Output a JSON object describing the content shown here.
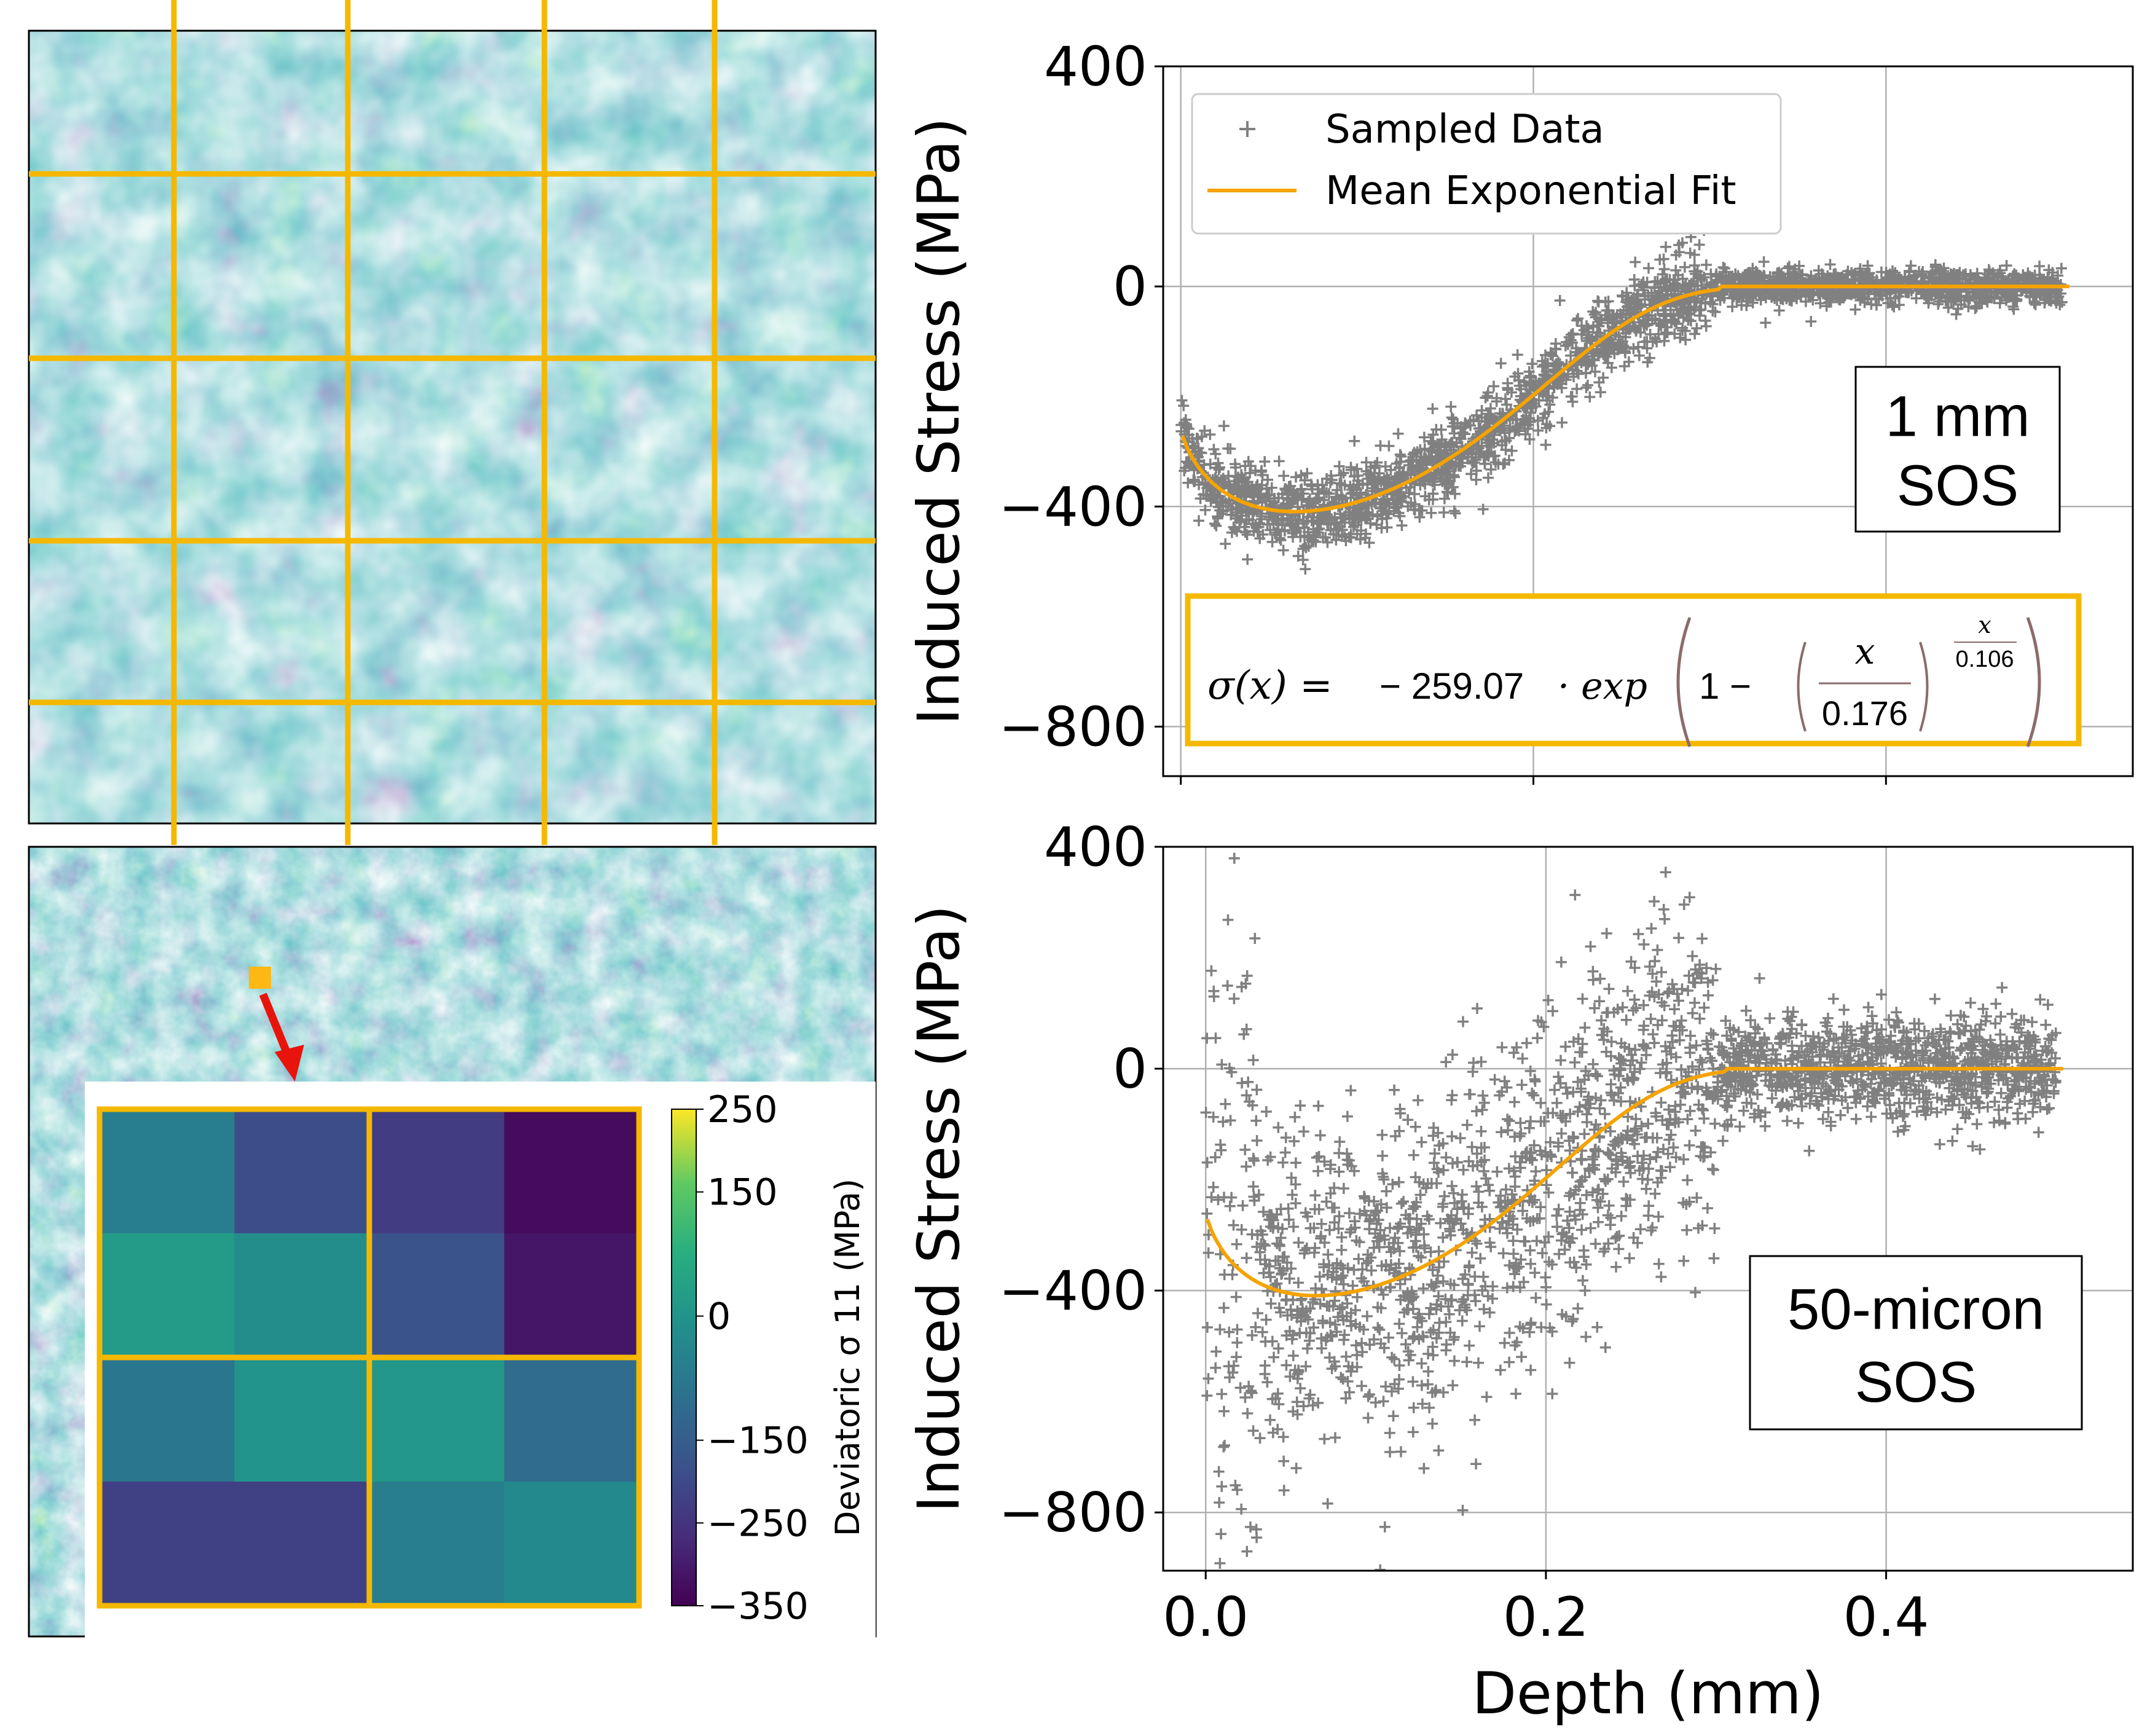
{
  "colors": {
    "grid_lines": "#f5b800",
    "scatter": "#808080",
    "fit": "#f5a300",
    "arrow": "#e8140c",
    "viridis_dark": "#440154",
    "viridis_mid": "#21918c",
    "viridis_light": "#fde725"
  },
  "images": {
    "top_map": {
      "name": "stress-field-map-1mm",
      "grid_rows": 5,
      "grid_cols": 5
    },
    "bottom_map": {
      "name": "stress-field-map-50micron"
    },
    "inset": {
      "name": "zoomed-cell-heatmap",
      "colorbar_label": "Deviatoric σ 11 (MPa)",
      "colorbar_ticks": [
        "250",
        "150",
        "0",
        "−150",
        "−250",
        "−350"
      ],
      "cells": [
        [
          -60,
          -190,
          -230,
          -330
        ],
        [
          20,
          -20,
          -180,
          -310
        ],
        [
          -80,
          0,
          10,
          -110
        ],
        [
          -220,
          -220,
          -60,
          -30
        ]
      ]
    }
  },
  "chart_data": [
    {
      "type": "scatter",
      "name": "top",
      "ylabel": "Induced Stress (MPa)",
      "xlabel": "",
      "xlim": [
        -0.01,
        0.54
      ],
      "ylim": [
        -890,
        400
      ],
      "yticks": [
        400,
        0,
        -400,
        -800
      ],
      "ytick_labels": [
        "400",
        "0",
        "−400",
        "−800"
      ],
      "xticks": [
        0.0,
        0.2,
        0.4
      ],
      "grid": true,
      "legend": {
        "position": "top-left",
        "entries": [
          "Sampled Data",
          "Mean Exponential Fit"
        ]
      },
      "annotation": {
        "line1": "1 mm",
        "line2": "SOS"
      },
      "equation": {
        "lhs": "σ(x) =",
        "coef": "− 259.07",
        "exp": "· exp",
        "one": "1 −",
        "num": "x",
        "den": "0.176",
        "p_num": "x",
        "p_den": "0.106"
      },
      "series": [
        {
          "name": "Sampled Data",
          "style": "scatter",
          "n_points": 2600,
          "spread_mpa": 35
        },
        {
          "name": "Mean Exponential Fit",
          "style": "line",
          "model": {
            "a": -259.07,
            "b": 0.176,
            "c": 0.106,
            "cutoff_x": 0.305
          }
        }
      ]
    },
    {
      "type": "scatter",
      "name": "bottom",
      "ylabel": "Induced Stress (MPa)",
      "xlabel": "Depth (mm)",
      "xlim": [
        -0.025,
        0.545
      ],
      "ylim": [
        -905,
        400
      ],
      "yticks": [
        400,
        0,
        -400,
        -800
      ],
      "ytick_labels": [
        "400",
        "0",
        "−400",
        "−800"
      ],
      "xticks": [
        0.0,
        0.2,
        0.4
      ],
      "xtick_labels": [
        "0.0",
        "0.2",
        "0.4"
      ],
      "grid": true,
      "annotation": {
        "line1": "50-micron",
        "line2": "SOS"
      },
      "series": [
        {
          "name": "Sampled Data",
          "style": "scatter",
          "n_points": 2400,
          "spread_mpa": 150
        },
        {
          "name": "Mean Exponential Fit",
          "style": "line",
          "model": {
            "a": -259.07,
            "b": 0.176,
            "c": 0.106,
            "cutoff_x": 0.305
          }
        }
      ]
    }
  ]
}
